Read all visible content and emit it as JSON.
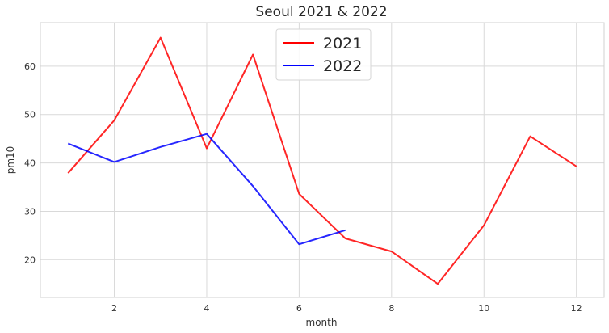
{
  "chart_data": {
    "type": "line",
    "title": "Seoul 2021 & 2022",
    "xlabel": "month",
    "ylabel": "pm10",
    "xlim": [
      0.4,
      12.6
    ],
    "ylim": [
      12.2,
      69.0
    ],
    "xticks": [
      2,
      4,
      6,
      8,
      10,
      12
    ],
    "yticks": [
      20,
      30,
      40,
      50,
      60
    ],
    "grid": true,
    "legend_position": "top-center",
    "series": [
      {
        "name": "2021",
        "color": "#ff0000",
        "x": [
          1,
          2,
          3,
          4,
          5,
          6,
          7,
          8,
          9,
          10,
          11,
          12
        ],
        "y": [
          37.9,
          48.8,
          65.9,
          43.0,
          62.4,
          33.6,
          24.4,
          21.7,
          15.0,
          27.1,
          45.5,
          39.3
        ]
      },
      {
        "name": "2022",
        "color": "#0000ff",
        "x": [
          1,
          2,
          3,
          4,
          5,
          6,
          7
        ],
        "y": [
          44.0,
          40.2,
          43.3,
          46.0,
          35.2,
          23.2,
          26.1
        ]
      }
    ]
  }
}
